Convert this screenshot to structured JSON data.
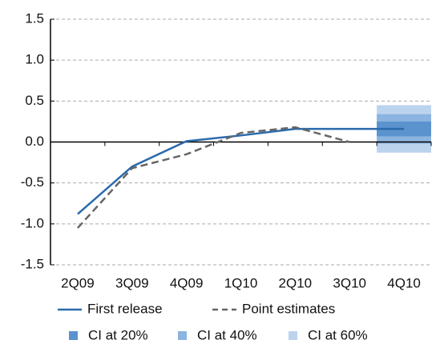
{
  "chart_data": {
    "type": "line",
    "categories": [
      "2Q09",
      "3Q09",
      "4Q09",
      "1Q10",
      "2Q10",
      "3Q10",
      "4Q10"
    ],
    "series": [
      {
        "name": "First release",
        "color": "#2a6aab",
        "dash": false,
        "values": [
          -0.88,
          -0.3,
          0.01,
          0.08,
          0.16,
          0.16,
          0.16
        ]
      },
      {
        "name": "Point estimates",
        "color": "#666666",
        "dash": true,
        "values": [
          -1.05,
          -0.32,
          -0.15,
          0.11,
          0.18,
          0.0,
          null
        ]
      }
    ],
    "intervals": [
      {
        "name": "CI at 20%",
        "color": "#5b93cf",
        "category": 6,
        "low": 0.07,
        "high": 0.25
      },
      {
        "name": "CI at 40%",
        "color": "#8cb4e0",
        "category": 6,
        "low": -0.02,
        "high": 0.34
      },
      {
        "name": "CI at 60%",
        "color": "#bcd3ee",
        "category": 6,
        "low": -0.13,
        "high": 0.45
      }
    ],
    "ylim": [
      -1.5,
      1.5
    ],
    "yticks": [
      1.5,
      {
        "value": 1.0,
        "label": "1.0"
      },
      0.5,
      {
        "value": 0.0,
        "label": "0.0"
      },
      -0.5,
      {
        "value": -1.0,
        "label": "-1.0"
      },
      -1.5
    ],
    "grid": true
  }
}
